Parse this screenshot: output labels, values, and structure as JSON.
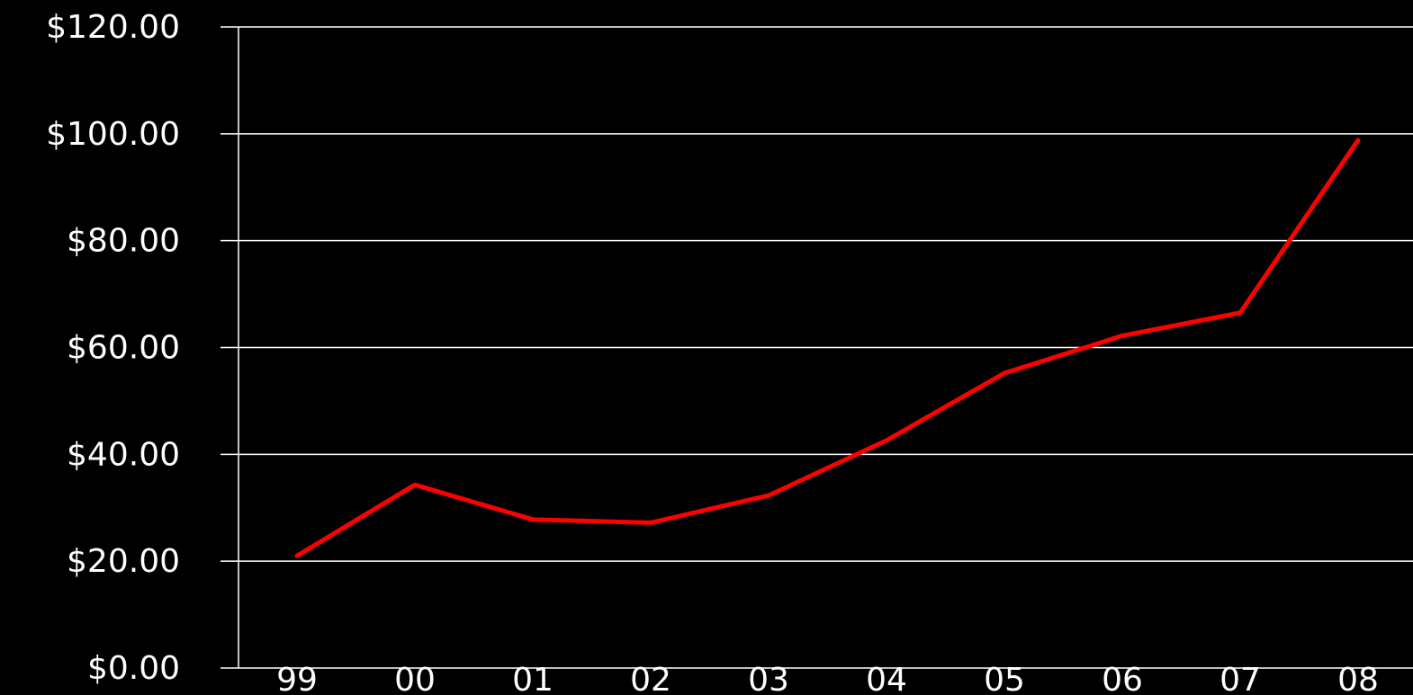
{
  "chart_data": {
    "type": "line",
    "title": "",
    "xlabel": "",
    "ylabel": "",
    "categories": [
      "99",
      "00",
      "01",
      "02",
      "03",
      "04",
      "05",
      "06",
      "07",
      "08"
    ],
    "series": [
      {
        "values": [
          21.0,
          34.3,
          27.8,
          27.2,
          32.3,
          42.6,
          55.2,
          62.2,
          66.5,
          98.8
        ]
      }
    ],
    "y_ticks": [
      "$0.00",
      "$20.00",
      "$40.00",
      "$60.00",
      "$80.00",
      "$100.00",
      "$120.00"
    ],
    "y_tick_values": [
      0,
      20,
      40,
      60,
      80,
      100,
      120
    ],
    "ylim": [
      0,
      120
    ],
    "grid": true,
    "legend": "none",
    "colors": {
      "background": "#000000",
      "grid": "#ffffff",
      "text": "#ffffff",
      "series": "#ff0000"
    }
  }
}
